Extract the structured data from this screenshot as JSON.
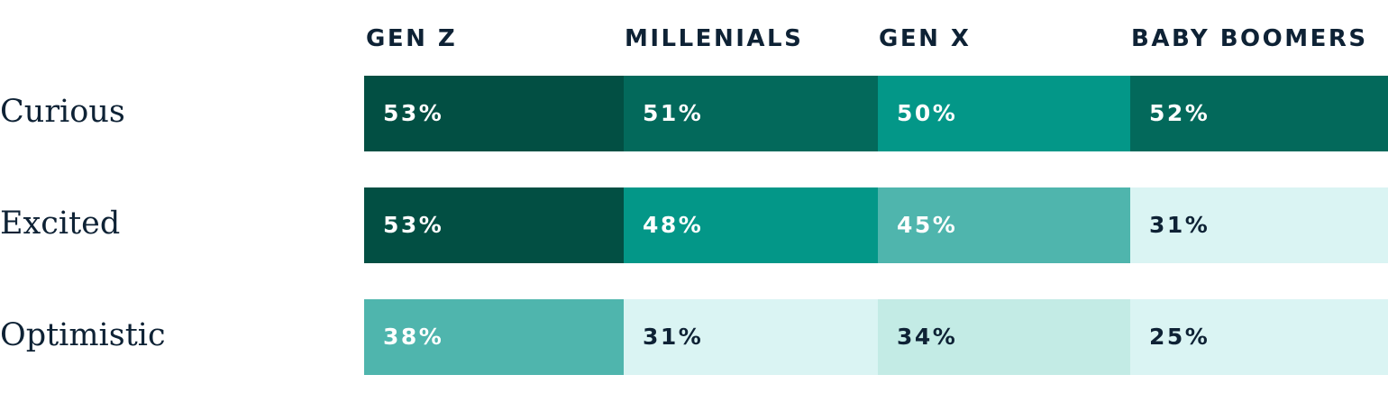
{
  "chart_data": {
    "type": "heatmap",
    "columns": [
      "GEN Z",
      "MILLENIALS",
      "GEN X",
      "BABY BOOMERS"
    ],
    "rows": [
      {
        "label": "Curious",
        "values": [
          53,
          51,
          50,
          52
        ],
        "display": [
          "53%",
          "51%",
          "50%",
          "52%"
        ]
      },
      {
        "label": "Excited",
        "values": [
          53,
          48,
          45,
          31
        ],
        "display": [
          "53%",
          "48%",
          "45%",
          "31%"
        ]
      },
      {
        "label": "Optimistic",
        "values": [
          38,
          31,
          34,
          25
        ],
        "display": [
          "38%",
          "31%",
          "34%",
          "25%"
        ]
      }
    ],
    "unit": "%",
    "color_scale": [
      {
        "min": 53,
        "color": "#024f43",
        "text": "#ffffff"
      },
      {
        "min": 51,
        "color": "#03695b",
        "text": "#ffffff"
      },
      {
        "min": 48,
        "color": "#039788",
        "text": "#ffffff"
      },
      {
        "min": 38,
        "color": "#4fb5ad",
        "text": "#ffffff"
      },
      {
        "min": 33,
        "color": "#c3ebe5",
        "text": "#0e2235"
      },
      {
        "min": 0,
        "color": "#daf4f3",
        "text": "#0e2235"
      }
    ]
  }
}
